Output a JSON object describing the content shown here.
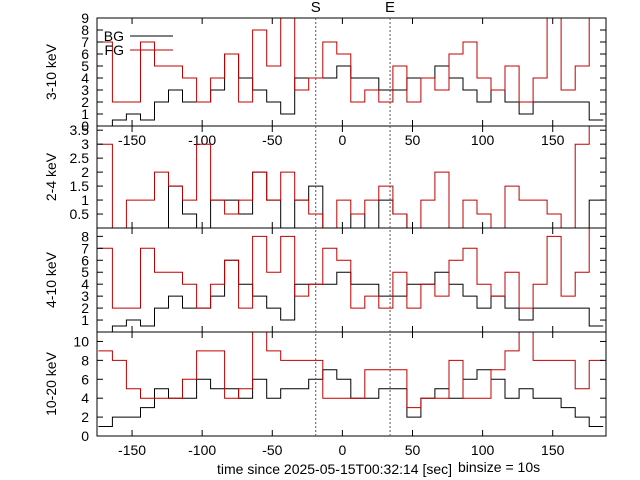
{
  "x_axis_label": "time since 2025-05-15T00:32:14 [sec]",
  "binsize_label": "binsize = 10s",
  "markers": [
    {
      "label": "S",
      "x": -19
    },
    {
      "label": "E",
      "x": 34
    }
  ],
  "legend": [
    {
      "label": "BG",
      "color": "#000000"
    },
    {
      "label": "FG",
      "color": "#c00000"
    }
  ],
  "colors": {
    "bg": "#000000",
    "fg": "#c00000"
  },
  "chart_data": [
    {
      "type": "line",
      "ylabel": "3-10 keV",
      "xlim": [
        -175,
        188
      ],
      "ylim": [
        0,
        9
      ],
      "x_ticks": [
        -150,
        -100,
        -50,
        0,
        50,
        100,
        150
      ],
      "x_tick_labels": [
        "-150",
        "-100",
        "-50",
        "0",
        "50",
        "100",
        "150"
      ],
      "y_ticks": [
        0,
        1,
        2,
        3,
        4,
        5,
        6,
        7,
        8,
        9
      ],
      "y_tick_labels": [
        "0",
        "1",
        "2",
        "3",
        "4",
        "5",
        "6",
        "7",
        "8",
        "9"
      ],
      "bin_edges": [
        -174,
        -164,
        -154,
        -144,
        -134,
        -124,
        -114,
        -104,
        -94,
        -84,
        -74,
        -64,
        -54,
        -44,
        -34,
        -24,
        -14,
        -4,
        6,
        16,
        26,
        36,
        46,
        56,
        66,
        76,
        86,
        96,
        106,
        116,
        126,
        136,
        146,
        156,
        166,
        176,
        186
      ],
      "series": [
        {
          "name": "BG",
          "values": [
            0,
            0.5,
            1,
            0.5,
            2,
            3,
            2,
            2,
            3,
            6,
            4,
            3,
            2,
            1,
            4,
            4,
            4,
            5,
            4,
            4,
            3,
            3,
            4,
            4,
            5,
            4,
            3,
            2,
            3,
            2,
            1,
            2,
            2,
            2,
            2,
            0.5
          ]
        },
        {
          "name": "FG",
          "values": [
            7,
            2,
            2,
            7,
            5,
            5,
            4,
            2,
            4,
            6,
            2,
            8,
            5,
            9,
            3,
            4,
            7,
            6,
            2,
            3,
            2,
            5,
            2,
            4,
            3,
            6,
            7,
            4,
            3,
            5,
            2,
            4,
            9,
            3,
            5,
            9
          ]
        }
      ]
    },
    {
      "type": "line",
      "ylabel": "2-4 keV",
      "xlim": [
        -175,
        188
      ],
      "ylim": [
        0,
        3.65
      ],
      "x_ticks": [
        -150,
        -100,
        -50,
        0,
        50,
        100,
        150
      ],
      "x_tick_labels": [
        "",
        "",
        "",
        "",
        "",
        "",
        ""
      ],
      "y_ticks": [
        0.5,
        1,
        1.5,
        2,
        2.5,
        3,
        3.5
      ],
      "y_tick_labels": [
        "0.5",
        "1",
        "1.5",
        "2",
        "2.5",
        "3",
        "3.5"
      ],
      "bin_edges": [
        -174,
        -164,
        -154,
        -144,
        -134,
        -124,
        -114,
        -104,
        -94,
        -84,
        -74,
        -64,
        -54,
        -44,
        -34,
        -24,
        -14,
        -4,
        6,
        16,
        26,
        36,
        46,
        56,
        66,
        76,
        86,
        96,
        106,
        116,
        126,
        136,
        146,
        156,
        166,
        176,
        186
      ],
      "series": [
        {
          "name": "BG",
          "values": [
            0,
            0,
            0,
            0,
            0,
            1.5,
            0.5,
            0,
            1,
            1,
            0.5,
            2,
            1,
            0,
            1,
            1.5,
            0,
            0,
            0.5,
            0,
            1,
            0.5,
            0,
            0,
            0,
            0,
            0,
            0,
            0,
            0,
            0,
            0,
            0,
            0,
            0,
            1
          ]
        },
        {
          "name": "FG",
          "values": [
            3,
            0,
            1,
            1,
            2,
            1.5,
            1,
            3,
            1,
            0.5,
            1,
            2,
            1,
            2,
            1,
            0.5,
            0,
            1,
            0.5,
            1,
            1.5,
            0.5,
            0,
            1,
            2,
            0,
            1,
            0.5,
            0,
            1.5,
            1,
            1,
            0.5,
            0,
            3,
            3.65
          ]
        }
      ]
    },
    {
      "type": "line",
      "ylabel": "4-10 keV",
      "xlim": [
        -175,
        188
      ],
      "ylim": [
        0,
        8.7
      ],
      "x_ticks": [
        -150,
        -100,
        -50,
        0,
        50,
        100,
        150
      ],
      "x_tick_labels": [
        "",
        "",
        "",
        "",
        "",
        "",
        ""
      ],
      "y_ticks": [
        1,
        2,
        3,
        4,
        5,
        6,
        7,
        8
      ],
      "y_tick_labels": [
        "1",
        "2",
        "3",
        "4",
        "5",
        "6",
        "7",
        "8"
      ],
      "bin_edges": [
        -174,
        -164,
        -154,
        -144,
        -134,
        -124,
        -114,
        -104,
        -94,
        -84,
        -74,
        -64,
        -54,
        -44,
        -34,
        -24,
        -14,
        -4,
        6,
        16,
        26,
        36,
        46,
        56,
        66,
        76,
        86,
        96,
        106,
        116,
        126,
        136,
        146,
        156,
        166,
        176,
        186
      ],
      "series": [
        {
          "name": "BG",
          "values": [
            0,
            0.5,
            1,
            0.5,
            2,
            3,
            2,
            2,
            3,
            6,
            4,
            3,
            2,
            1,
            4,
            4,
            4,
            5,
            4,
            4,
            3,
            3,
            4,
            4,
            5,
            4,
            3,
            2,
            3,
            2,
            1,
            2,
            2,
            2,
            2,
            0.5
          ]
        },
        {
          "name": "FG",
          "values": [
            7,
            2,
            2,
            7,
            5,
            5,
            4,
            2,
            4,
            6,
            2,
            8,
            5,
            8,
            3,
            4,
            7,
            6,
            2,
            3,
            2,
            5,
            2,
            4,
            3,
            6,
            7,
            4,
            3,
            5,
            2,
            4,
            8,
            3,
            5,
            8.7
          ]
        }
      ]
    },
    {
      "type": "line",
      "ylabel": "10-20 keV",
      "xlim": [
        -175,
        188
      ],
      "ylim": [
        0,
        11
      ],
      "x_ticks": [
        -150,
        -100,
        -50,
        0,
        50,
        100,
        150
      ],
      "x_tick_labels": [
        "-150",
        "-100",
        "-50",
        "0",
        "50",
        "100",
        "150"
      ],
      "y_ticks": [
        0,
        2,
        4,
        6,
        8,
        10
      ],
      "y_tick_labels": [
        "0",
        "2",
        "4",
        "6",
        "8",
        "10"
      ],
      "bin_edges": [
        -174,
        -164,
        -154,
        -144,
        -134,
        -124,
        -114,
        -104,
        -94,
        -84,
        -74,
        -64,
        -54,
        -44,
        -34,
        -24,
        -14,
        -4,
        6,
        16,
        26,
        36,
        46,
        56,
        66,
        76,
        86,
        96,
        106,
        116,
        126,
        136,
        146,
        156,
        166,
        176,
        186
      ],
      "series": [
        {
          "name": "BG",
          "values": [
            1,
            2,
            2,
            3,
            5,
            4,
            4,
            6,
            5,
            5,
            4,
            6,
            4,
            5,
            5,
            6,
            7,
            6,
            4,
            4,
            5,
            5,
            2,
            4,
            5,
            4,
            6,
            7,
            6,
            4,
            5,
            4,
            4,
            3,
            2,
            1
          ]
        },
        {
          "name": "FG",
          "values": [
            9,
            8,
            5,
            4,
            4,
            4,
            6,
            9,
            9,
            4,
            5,
            11,
            9,
            8,
            8,
            8,
            4,
            4,
            4,
            7,
            7,
            7,
            3,
            4,
            4,
            8,
            4,
            4,
            7,
            9,
            11,
            8,
            8,
            8,
            5,
            8
          ]
        }
      ]
    }
  ]
}
